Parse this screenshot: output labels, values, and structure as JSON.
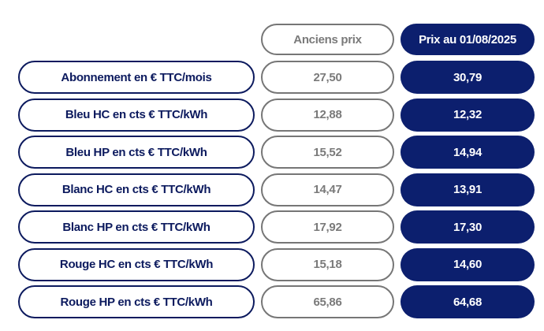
{
  "header": {
    "old_label": "Anciens prix",
    "new_label": "Prix au 01/08/2025"
  },
  "colors": {
    "navy": "#0c1f6e",
    "gray": "#767676"
  },
  "rows": [
    {
      "label": "Abonnement en € TTC/mois",
      "old": "27,50",
      "new": "30,79"
    },
    {
      "label": "Bleu HC en cts € TTC/kWh",
      "old": "12,88",
      "new": "12,32"
    },
    {
      "label": "Bleu HP en cts € TTC/kWh",
      "old": "15,52",
      "new": "14,94"
    },
    {
      "label": "Blanc HC en cts € TTC/kWh",
      "old": "14,47",
      "new": "13,91"
    },
    {
      "label": "Blanc HP en cts € TTC/kWh",
      "old": "17,92",
      "new": "17,30"
    },
    {
      "label": "Rouge HC en cts € TTC/kWh",
      "old": "15,18",
      "new": "14,60"
    },
    {
      "label": "Rouge HP en cts € TTC/kWh",
      "old": "65,86",
      "new": "64,68"
    }
  ]
}
